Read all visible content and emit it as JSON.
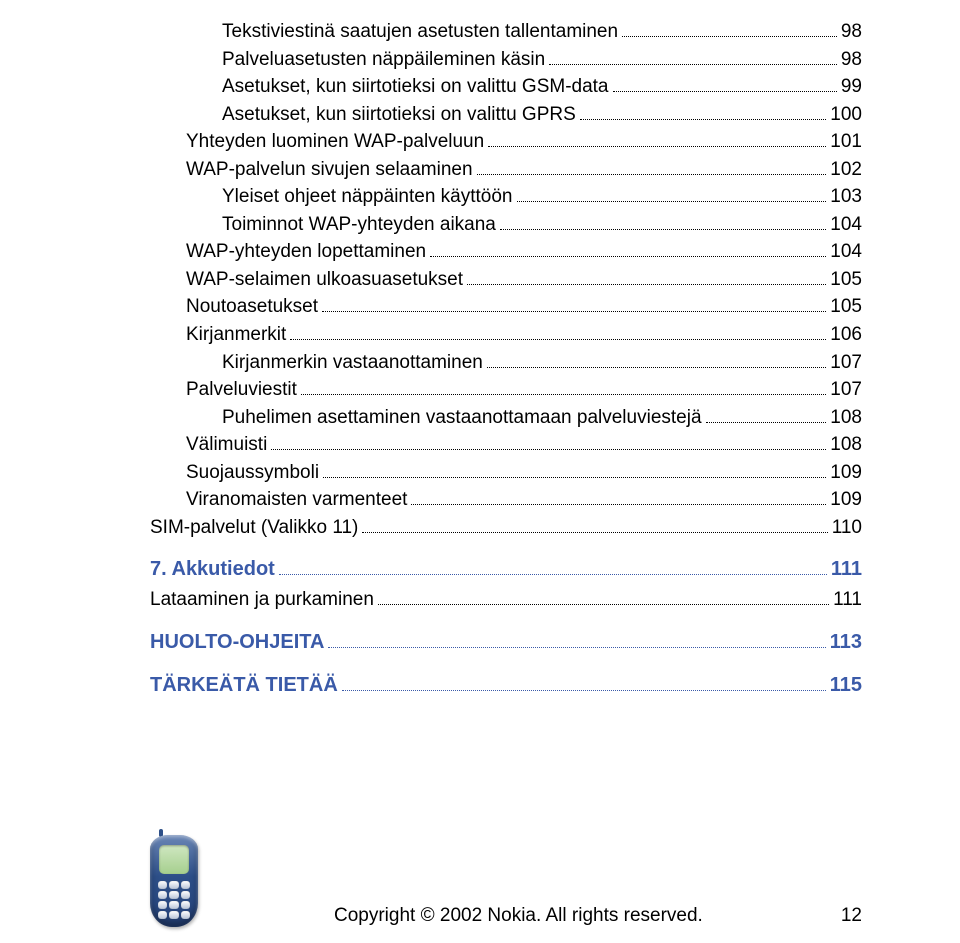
{
  "toc": [
    {
      "level": 2,
      "label": "Tekstiviestinä saatujen asetusten tallentaminen",
      "page": "98",
      "heading": false,
      "blue": false
    },
    {
      "level": 2,
      "label": "Palveluasetusten näppäileminen käsin",
      "page": "98",
      "heading": false,
      "blue": false
    },
    {
      "level": 2,
      "label": "Asetukset, kun siirtotieksi on valittu GSM-data",
      "page": "99",
      "heading": false,
      "blue": false
    },
    {
      "level": 2,
      "label": "Asetukset, kun siirtotieksi on valittu GPRS",
      "page": "100",
      "heading": false,
      "blue": false
    },
    {
      "level": 1,
      "label": "Yhteyden luominen WAP-palveluun",
      "page": "101",
      "heading": false,
      "blue": false
    },
    {
      "level": 1,
      "label": "WAP-palvelun sivujen selaaminen",
      "page": "102",
      "heading": false,
      "blue": false
    },
    {
      "level": 2,
      "label": "Yleiset ohjeet näppäinten käyttöön",
      "page": "103",
      "heading": false,
      "blue": false
    },
    {
      "level": 2,
      "label": "Toiminnot WAP-yhteyden aikana",
      "page": "104",
      "heading": false,
      "blue": false
    },
    {
      "level": 1,
      "label": "WAP-yhteyden lopettaminen",
      "page": "104",
      "heading": false,
      "blue": false
    },
    {
      "level": 1,
      "label": "WAP-selaimen ulkoasuasetukset",
      "page": "105",
      "heading": false,
      "blue": false
    },
    {
      "level": 1,
      "label": "Noutoasetukset",
      "page": "105",
      "heading": false,
      "blue": false
    },
    {
      "level": 1,
      "label": "Kirjanmerkit",
      "page": "106",
      "heading": false,
      "blue": false
    },
    {
      "level": 2,
      "label": "Kirjanmerkin vastaanottaminen",
      "page": "107",
      "heading": false,
      "blue": false
    },
    {
      "level": 1,
      "label": "Palveluviestit",
      "page": "107",
      "heading": false,
      "blue": false
    },
    {
      "level": 2,
      "label": "Puhelimen asettaminen vastaanottamaan palveluviestejä",
      "page": "108",
      "heading": false,
      "blue": false
    },
    {
      "level": 1,
      "label": "Välimuisti",
      "page": "108",
      "heading": false,
      "blue": false
    },
    {
      "level": 1,
      "label": "Suojaussymboli",
      "page": "109",
      "heading": false,
      "blue": false
    },
    {
      "level": 1,
      "label": "Viranomaisten varmenteet",
      "page": "109",
      "heading": false,
      "blue": false
    },
    {
      "level": 0,
      "label": "SIM-palvelut (Valikko 11)",
      "page": "110",
      "heading": false,
      "blue": false
    },
    {
      "level": 0,
      "label": "7. Akkutiedot",
      "page": "111",
      "heading": true,
      "blue": true
    },
    {
      "level": 0,
      "label": "Lataaminen ja purkaminen",
      "page": "111",
      "heading": false,
      "blue": false
    },
    {
      "level": 0,
      "label": "HUOLTO-OHJEITA",
      "page": "113",
      "heading": true,
      "blue": true
    },
    {
      "level": 0,
      "label": "TÄRKEÄTÄ TIETÄÄ",
      "page": "115",
      "heading": true,
      "blue": true
    }
  ],
  "footer": {
    "copyright": "Copyright © 2002 Nokia. All rights reserved.",
    "page_number": "12"
  }
}
